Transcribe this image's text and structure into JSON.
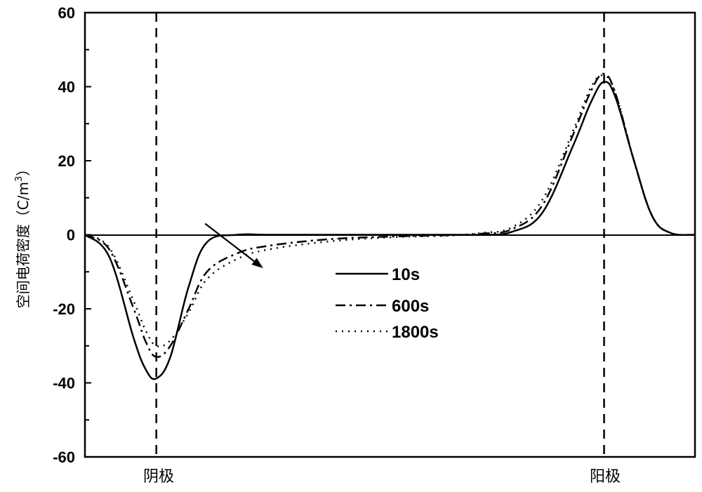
{
  "chart_data": {
    "type": "line",
    "title": "",
    "xlabel": "",
    "ylabel": "空间电荷密度（C/m3）",
    "ylabel_parts": {
      "text": "空间电荷密度（C/m",
      "sup": "3",
      "close": "）"
    },
    "ylim": [
      -60,
      60
    ],
    "yticks": [
      -60,
      -40,
      -20,
      0,
      20,
      40,
      60
    ],
    "ytick_labels": [
      "-60",
      "-40",
      "-20",
      "0",
      "20",
      "40",
      "60"
    ],
    "xlim": [
      0,
      1
    ],
    "x_note": "normalized position between electrodes (no numeric x ticks shown)",
    "grid": false,
    "reference_lines": [
      {
        "label": "阴极",
        "x": 0.117,
        "style": "dashed"
      },
      {
        "label": "阳极",
        "x": 0.851,
        "style": "dashed"
      }
    ],
    "legend": {
      "position": "center",
      "entries": [
        "10s",
        "600s",
        "1800s"
      ]
    },
    "annotation": {
      "type": "arrow",
      "meaning": "negative charge spreading with time",
      "from": [
        0.197,
        3
      ],
      "to": [
        0.292,
        -9
      ]
    },
    "x": [
      0.0,
      0.04,
      0.08,
      0.1,
      0.117,
      0.14,
      0.17,
      0.2,
      0.25,
      0.3,
      0.4,
      0.5,
      0.6,
      0.65,
      0.7,
      0.75,
      0.8,
      0.83,
      0.851,
      0.87,
      0.9,
      0.93,
      0.96,
      1.0
    ],
    "series": [
      {
        "name": "10s",
        "style": "solid",
        "values": [
          0,
          -6,
          -28,
          -36.5,
          -38.8,
          -33,
          -14,
          -2,
          0,
          0,
          0,
          0,
          0,
          0,
          0.8,
          6,
          24,
          36,
          41.3,
          37,
          20,
          5,
          0.5,
          0
        ]
      },
      {
        "name": "600s",
        "style": "dashdot",
        "values": [
          0,
          -4,
          -20,
          -29,
          -33,
          -30,
          -20,
          -10,
          -5,
          -3,
          -1.2,
          -0.5,
          -0.1,
          0.3,
          1.5,
          8,
          27,
          39,
          43.5,
          38,
          20,
          5,
          0.5,
          0
        ]
      },
      {
        "name": "1800s",
        "style": "dotted",
        "values": [
          0,
          -3.5,
          -18,
          -26,
          -30,
          -28.5,
          -21,
          -12,
          -6.5,
          -4,
          -1.8,
          -0.7,
          -0.2,
          0.5,
          2,
          9.5,
          28,
          40,
          43,
          38,
          20,
          5,
          0.5,
          0
        ]
      }
    ]
  },
  "labels": {
    "cathode": "阴极",
    "anode": "阳极"
  }
}
